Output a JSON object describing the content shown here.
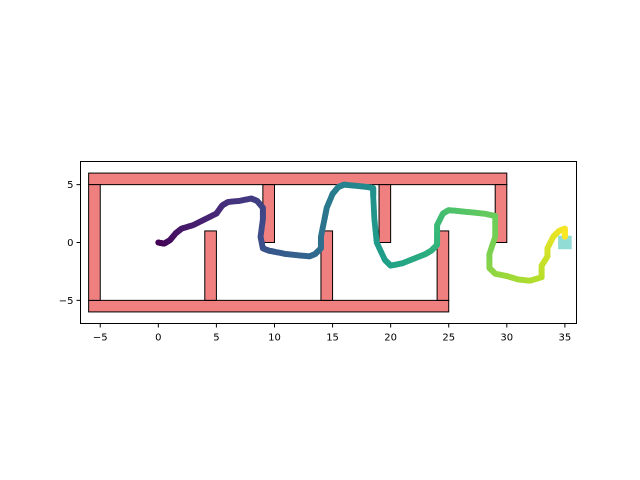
{
  "chart_data": {
    "type": "scatter",
    "title": "",
    "xlabel": "",
    "ylabel": "",
    "xlim": [
      -6.7,
      36.0
    ],
    "ylim": [
      -7.0,
      7.0
    ],
    "xticks": [
      -5,
      0,
      5,
      10,
      15,
      20,
      25,
      30,
      35
    ],
    "xtick_labels": [
      "−5",
      "0",
      "5",
      "10",
      "15",
      "20",
      "25",
      "30",
      "35"
    ],
    "yticks": [
      -5,
      0,
      5
    ],
    "ytick_labels": [
      "−5",
      "0",
      "5"
    ],
    "grid": false,
    "legend": "none",
    "colormap": "viridis",
    "wall_color": "#f08080",
    "wall_edge_color": "#000000",
    "goal_color": "#7fd6d0",
    "walls": [
      {
        "x0": -6,
        "y0": 5,
        "x1": 30,
        "y1": 6
      },
      {
        "x0": -6,
        "y0": -6,
        "x1": 25,
        "y1": -5
      },
      {
        "x0": -6,
        "y0": -5,
        "x1": -5,
        "y1": 5
      },
      {
        "x0": 4,
        "y0": -5,
        "x1": 5,
        "y1": 1
      },
      {
        "x0": 9,
        "y0": 0,
        "x1": 10,
        "y1": 5
      },
      {
        "x0": 14,
        "y0": -5,
        "x1": 15,
        "y1": 1
      },
      {
        "x0": 19,
        "y0": 0,
        "x1": 20,
        "y1": 5
      },
      {
        "x0": 24,
        "y0": -5,
        "x1": 25,
        "y1": 1
      },
      {
        "x0": 29,
        "y0": 0,
        "x1": 30,
        "y1": 5
      }
    ],
    "goal": {
      "x0": 34.5,
      "y0": -0.5,
      "x1": 35.5,
      "y1": 0.5
    },
    "trajectory": {
      "x": [
        0,
        0.5,
        1,
        1.5,
        2,
        3,
        4,
        5,
        5.5,
        6,
        7,
        8,
        8.5,
        9,
        9,
        8.8,
        9,
        9.5,
        10,
        11,
        12,
        13,
        13.5,
        14,
        14,
        14.3,
        14.5,
        15,
        15.5,
        16,
        17,
        18,
        18.5,
        18.5,
        18.6,
        18.8,
        19.5,
        20,
        21,
        22,
        23,
        23.5,
        24,
        24,
        24,
        24.5,
        25,
        26,
        27,
        28,
        29,
        29,
        28.5,
        28.5,
        29,
        30,
        31,
        32,
        33,
        33,
        33.5,
        33.5,
        34,
        34.5,
        35,
        35
      ],
      "y": [
        0,
        -0.1,
        0.2,
        0.8,
        1.2,
        1.5,
        2.0,
        2.5,
        3.2,
        3.5,
        3.6,
        3.8,
        3.6,
        3.0,
        2.0,
        0.5,
        -0.5,
        -0.7,
        -0.8,
        -1.0,
        -1.1,
        -1.2,
        -1.0,
        -0.5,
        0.5,
        2.0,
        3.0,
        4.2,
        4.8,
        5.0,
        4.9,
        4.8,
        4.7,
        4.0,
        2.0,
        0.0,
        -1.5,
        -2.0,
        -1.8,
        -1.4,
        -1.0,
        -0.7,
        -0.2,
        0.5,
        1.5,
        2.5,
        2.8,
        2.7,
        2.6,
        2.5,
        2.3,
        0.5,
        -1.0,
        -2.2,
        -2.7,
        -2.9,
        -3.2,
        -3.3,
        -3.0,
        -2.0,
        -1.2,
        -0.5,
        0.5,
        1.0,
        1.2,
        0.5
      ]
    }
  }
}
